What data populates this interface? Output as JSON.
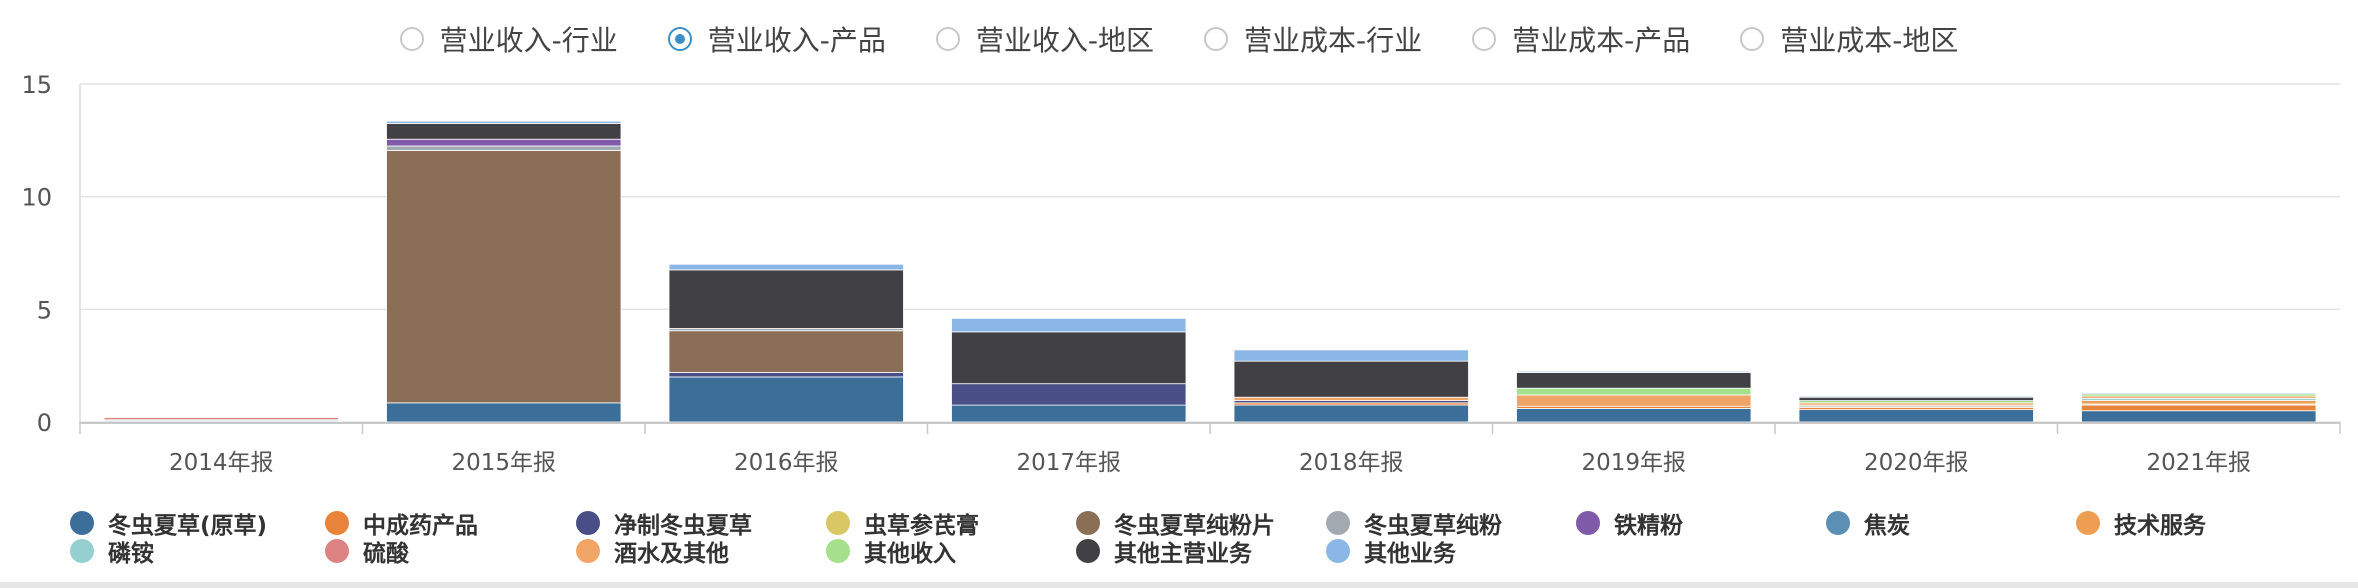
{
  "tabs": [
    {
      "label": "营业收入-行业",
      "checked": false
    },
    {
      "label": "营业收入-产品",
      "checked": true
    },
    {
      "label": "营业收入-地区",
      "checked": false
    },
    {
      "label": "营业成本-行业",
      "checked": false
    },
    {
      "label": "营业成本-产品",
      "checked": false
    },
    {
      "label": "营业成本-地区",
      "checked": false
    }
  ],
  "chart_data": {
    "type": "bar",
    "stacked": true,
    "categories": [
      "2014年报",
      "2015年报",
      "2016年报",
      "2017年报",
      "2018年报",
      "2019年报",
      "2020年报",
      "2021年报"
    ],
    "ylim": [
      0,
      15
    ],
    "yticks": [
      0,
      5,
      10,
      15
    ],
    "grid": true,
    "legend_position": "bottom",
    "series": [
      {
        "name": "冬虫夏草(原草)",
        "color": "#3b6f9a",
        "values": [
          0,
          0.85,
          2.0,
          0.75,
          0.75,
          0.6,
          0.55,
          0.5
        ]
      },
      {
        "name": "中成药产品",
        "color": "#e8833a",
        "values": [
          0,
          0,
          0,
          0,
          0.1,
          0.1,
          0.1,
          0.25
        ]
      },
      {
        "name": "净制冬虫夏草",
        "color": "#4a4e86",
        "values": [
          0,
          0,
          0.2,
          0.95,
          0.1,
          0.0,
          0.05,
          0
        ]
      },
      {
        "name": "虫草参芪膏",
        "color": "#d9c765",
        "values": [
          0,
          0,
          0,
          0,
          0,
          0.0,
          0.05,
          0.05
        ]
      },
      {
        "name": "冬虫夏草纯粉片",
        "color": "#8a6e55",
        "values": [
          0,
          11.2,
          1.85,
          0,
          0,
          0,
          0,
          0
        ]
      },
      {
        "name": "冬虫夏草纯粉",
        "color": "#a2a9b1",
        "values": [
          0,
          0.2,
          0.1,
          0,
          0,
          0,
          0,
          0
        ]
      },
      {
        "name": "铁精粉",
        "color": "#7f5aa8",
        "values": [
          0,
          0.3,
          0,
          0,
          0,
          0,
          0,
          0
        ]
      },
      {
        "name": "焦炭",
        "color": "#5b8fb4",
        "values": [
          0.05,
          0,
          0,
          0,
          0,
          0,
          0,
          0
        ]
      },
      {
        "name": "技术服务",
        "color": "#ee9e53",
        "values": [
          0,
          0,
          0,
          0,
          0,
          0,
          0,
          0.15
        ]
      },
      {
        "name": "磷铵",
        "color": "#95cfcf",
        "values": [
          0.05,
          0,
          0,
          0,
          0,
          0,
          0,
          0.1
        ]
      },
      {
        "name": "硫酸",
        "color": "#dd8383",
        "values": [
          0.1,
          0,
          0,
          0,
          0,
          0,
          0,
          0
        ]
      },
      {
        "name": "酒水及其他",
        "color": "#f0a566",
        "values": [
          0,
          0,
          0,
          0,
          0.15,
          0.5,
          0.1,
          0.1
        ]
      },
      {
        "name": "其他收入",
        "color": "#a5e08c",
        "values": [
          0,
          0,
          0,
          0,
          0,
          0.3,
          0.1,
          0.1
        ]
      },
      {
        "name": "其他主营业务",
        "color": "#414045",
        "values": [
          0,
          0.7,
          2.6,
          2.3,
          1.6,
          0.7,
          0.15,
          0
        ]
      },
      {
        "name": "其他业务",
        "color": "#8bb7e6",
        "values": [
          0,
          0.1,
          0.25,
          0.6,
          0.5,
          0.05,
          0.05,
          0.05
        ]
      }
    ]
  }
}
